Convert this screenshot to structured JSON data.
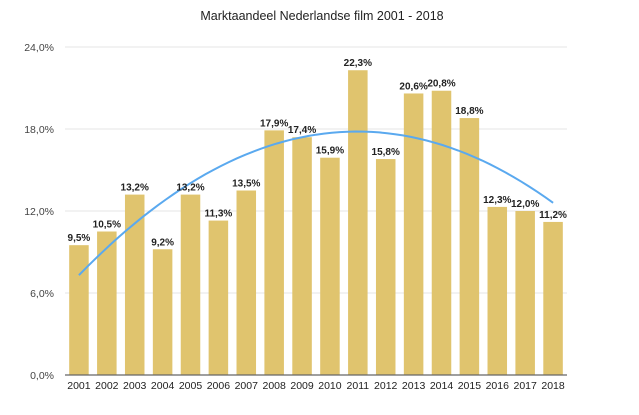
{
  "chart_data": {
    "type": "bar",
    "title": "Marktaandeel Nederlandse film 2001 - 2018",
    "xlabel": "",
    "ylabel": "",
    "categories": [
      "2001",
      "2002",
      "2003",
      "2004",
      "2005",
      "2006",
      "2007",
      "2008",
      "2009",
      "2010",
      "2011",
      "2012",
      "2013",
      "2014",
      "2015",
      "2016",
      "2017",
      "2018"
    ],
    "values": [
      9.5,
      10.5,
      13.2,
      9.2,
      13.2,
      11.3,
      13.5,
      17.9,
      17.4,
      15.9,
      22.3,
      15.8,
      20.6,
      20.8,
      18.8,
      12.3,
      12.0,
      11.2
    ],
    "data_labels": [
      "9,5%",
      "10,5%",
      "13,2%",
      "9,2%",
      "13,2%",
      "11,3%",
      "13,5%",
      "17,9%",
      "17,4%",
      "15,9%",
      "22,3%",
      "15,8%",
      "20,6%",
      "20,8%",
      "18,8%",
      "12,3%",
      "12,0%",
      "11,2%"
    ],
    "ylim": [
      0,
      24
    ],
    "yticks": [
      0,
      6,
      12,
      18,
      24
    ],
    "ytick_labels": [
      "0,0%",
      "6,0%",
      "12,0%",
      "18,0%",
      "24,0%"
    ],
    "grid": true,
    "legend": "none",
    "trendline": {
      "type": "polynomial-2",
      "description": "quadratic trendline rising from ~7.3% (2001) to peak ~17.8% (~2011) and falling to ~12.6% (2018)",
      "start_value": 7.3,
      "peak_value": 17.8,
      "end_value": 12.6
    },
    "colors": {
      "bar": "#e0c46e",
      "trendline": "#5aa9ef",
      "grid": "#e4e4e4",
      "axis": "#666666"
    }
  }
}
